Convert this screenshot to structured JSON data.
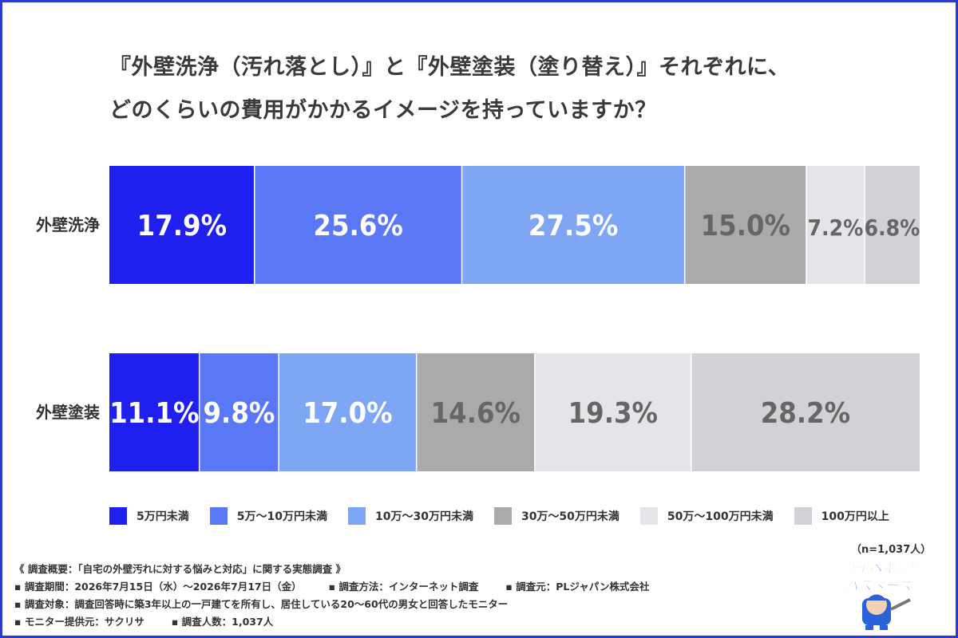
{
  "title_lines": [
    "『外壁洗浄（汚れ落とし）』と『外壁塗装（塗り替え）』それぞれに、",
    "どのくらいの費用がかかるイメージを持っていますか？"
  ],
  "chart_data": {
    "type": "bar",
    "orientation": "horizontal-stacked-100",
    "categories": [
      "外壁洗浄",
      "外壁塗装"
    ],
    "series": [
      {
        "name": "5万円未満",
        "color": "#1f1ff0",
        "values": [
          17.9,
          11.1
        ],
        "labels": [
          "17.9%",
          "11.1%"
        ]
      },
      {
        "name": "5万～10万円未満",
        "color": "#5a78f5",
        "values": [
          25.6,
          9.8
        ],
        "labels": [
          "25.6%",
          "9.8%"
        ]
      },
      {
        "name": "10万～30万円未満",
        "color": "#7ea6f4",
        "values": [
          27.5,
          17.0
        ],
        "labels": [
          "27.5%",
          "17.0%"
        ]
      },
      {
        "name": "30万～50万円未満",
        "color": "#aaaaad",
        "values": [
          15.0,
          14.6
        ],
        "labels": [
          "15.0%",
          "14.6%"
        ]
      },
      {
        "name": "50万～100万円未満",
        "color": "#e5e4e8",
        "values": [
          7.2,
          19.3
        ],
        "labels": [
          "7.2%",
          "19.3%"
        ]
      },
      {
        "name": "100万円以上",
        "color": "#d2d1d6",
        "values": [
          6.8,
          28.2
        ],
        "labels": [
          "6.8%",
          "28.2%"
        ]
      }
    ],
    "label_colors": [
      "#ffffff",
      "#ffffff",
      "#ffffff",
      "#666666",
      "#666666",
      "#666666"
    ],
    "legend_position": "bottom"
  },
  "sample_size": "（n=1,037人）",
  "notes": {
    "overview": "《 調査概要：「自宅の外壁汚れに対する悩みと対応」に関する実態調査 》",
    "period": "▪ 調査期間：2026年7月15日（水）～2026年7月17日（金）",
    "method": "▪ 調査方法：インターネット調査",
    "source": "▪ 調査元：PLジャパン株式会社",
    "target": "▪ 調査対象：調査回答時に築3年以上の一戸建てを所有し、居住している20～60代の男女と回答したモニター",
    "provider": "▪ モニター提供元：サクリサ",
    "count": "▪ 調査人数：1,037人"
  },
  "logo": {
    "line1": "ガイヘキ洗浄",
    "line2": "バスターズ"
  }
}
